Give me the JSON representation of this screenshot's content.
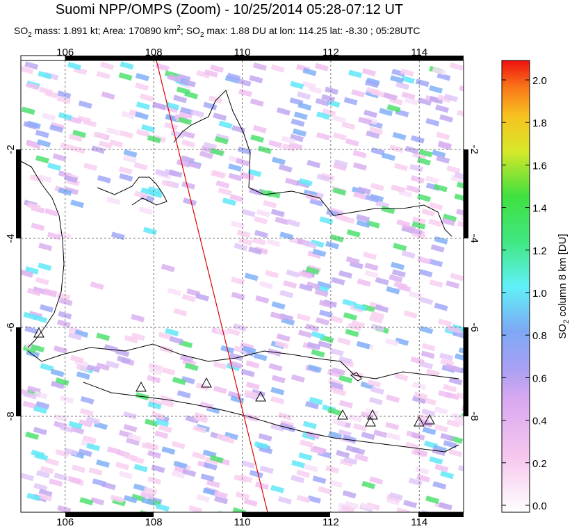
{
  "header": {
    "title": "Suomi NPP/OMPS (Zoom) - 10/25/2014 05:28-07:12 UT",
    "subtitle": [
      "SO",
      "2",
      " mass: 1.891 kt; Area: 170890 km",
      "2",
      "; SO",
      "2",
      " max: 1.88 DU at lon: 114.25 lat: -8.30 ; 05:28UTC"
    ]
  },
  "map": {
    "lon_ticks": [
      106,
      108,
      110,
      112,
      114
    ],
    "lat_ticks": [
      -2,
      -4,
      -6,
      -8
    ]
  },
  "colorbar": {
    "label": [
      "SO",
      "2",
      " column 8 km [DU]"
    ],
    "ticks": [
      {
        "value": 0,
        "label": "0.0"
      },
      {
        "value": 0.2,
        "label": "0.2"
      },
      {
        "value": 0.4,
        "label": "0.4"
      },
      {
        "value": 0.6,
        "label": "0.6"
      },
      {
        "value": 0.8,
        "label": "0.8"
      },
      {
        "value": 1,
        "label": "1.0"
      },
      {
        "value": 1.2,
        "label": "1.2"
      },
      {
        "value": 1.4,
        "label": "1.4"
      },
      {
        "value": 1.6,
        "label": "1.6"
      },
      {
        "value": 1.8,
        "label": "1.8"
      },
      {
        "value": 2,
        "label": "2.0"
      }
    ]
  }
}
